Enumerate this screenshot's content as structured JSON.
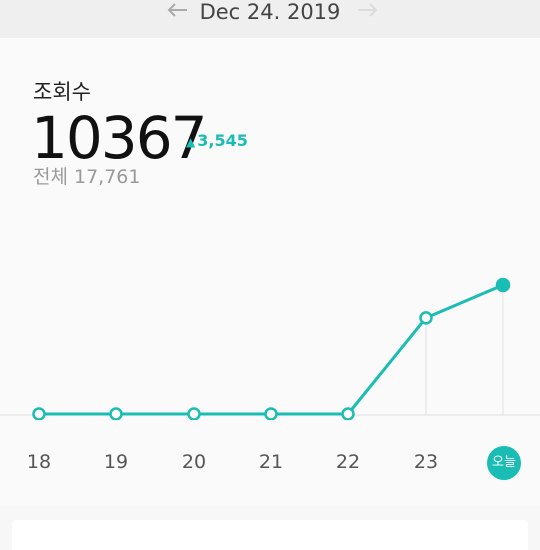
{
  "header": {
    "date": "Dec 24. 2019",
    "prev_icon": "arrow-left-icon",
    "next_icon": "arrow-right-icon"
  },
  "metric": {
    "title": "조회수",
    "value": "10367",
    "delta": "3,545",
    "delta_icon": "triangle-up-icon",
    "total_label": "전체 17,761"
  },
  "colors": {
    "accent": "#19bdb4",
    "line": "#19bdb4",
    "axis": "#dddddd"
  },
  "chart_data": {
    "type": "line",
    "categories": [
      "18",
      "19",
      "20",
      "21",
      "22",
      "23",
      "오늘"
    ],
    "series": [
      {
        "values": [
          0,
          0,
          0,
          0,
          0,
          2642,
          3545
        ]
      }
    ],
    "ylim": [
      0,
      3545
    ],
    "grid": false
  }
}
